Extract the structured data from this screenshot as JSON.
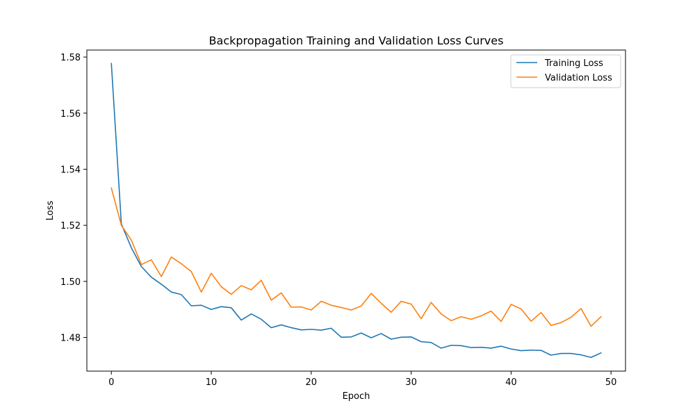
{
  "chart_data": {
    "type": "line",
    "title": "Backpropagation Training and Validation Loss Curves",
    "xlabel": "Epoch",
    "ylabel": "Loss",
    "xlim": [
      -2.45,
      51.45
    ],
    "ylim": [
      1.468,
      1.5825
    ],
    "xticks": [
      0,
      10,
      20,
      30,
      40,
      50
    ],
    "yticks": [
      1.48,
      1.5,
      1.52,
      1.54,
      1.56,
      1.58
    ],
    "ytick_labels": [
      "1.48",
      "1.50",
      "1.52",
      "1.54",
      "1.56",
      "1.58"
    ],
    "grid": false,
    "legend_position": "top-right",
    "x": [
      0,
      1,
      2,
      3,
      4,
      5,
      6,
      7,
      8,
      9,
      10,
      11,
      12,
      13,
      14,
      15,
      16,
      17,
      18,
      19,
      20,
      21,
      22,
      23,
      24,
      25,
      26,
      27,
      28,
      29,
      30,
      31,
      32,
      33,
      34,
      35,
      36,
      37,
      38,
      39,
      40,
      41,
      42,
      43,
      44,
      45,
      46,
      47,
      48,
      49
    ],
    "series": [
      {
        "name": "Training Loss",
        "color": "#1f77b4",
        "values": [
          1.5777,
          1.5205,
          1.512,
          1.5053,
          1.5015,
          1.499,
          1.4962,
          1.4953,
          1.4913,
          1.4915,
          1.49,
          1.491,
          1.4906,
          1.4862,
          1.4884,
          1.4865,
          1.4835,
          1.4845,
          1.4835,
          1.4827,
          1.4829,
          1.4826,
          1.4833,
          1.4801,
          1.4802,
          1.4816,
          1.4799,
          1.4814,
          1.4794,
          1.4801,
          1.4802,
          1.4785,
          1.4782,
          1.4762,
          1.4772,
          1.4771,
          1.4764,
          1.4765,
          1.4762,
          1.4769,
          1.4759,
          1.4753,
          1.4755,
          1.4754,
          1.4737,
          1.4743,
          1.4743,
          1.4738,
          1.4729,
          1.4745
        ]
      },
      {
        "name": "Validation Loss",
        "color": "#ff7f0e",
        "values": [
          1.5333,
          1.52,
          1.5147,
          1.506,
          1.5077,
          1.5017,
          1.5087,
          1.5063,
          1.5035,
          1.4962,
          1.5029,
          1.4981,
          1.4954,
          1.4985,
          1.497,
          1.5004,
          1.4933,
          1.4959,
          1.4908,
          1.4909,
          1.4898,
          1.4929,
          1.4915,
          1.4907,
          1.4898,
          1.4912,
          1.4957,
          1.4922,
          1.489,
          1.4929,
          1.4919,
          1.4867,
          1.4925,
          1.4884,
          1.486,
          1.4874,
          1.4865,
          1.4877,
          1.4894,
          1.4857,
          1.4918,
          1.4902,
          1.4858,
          1.4889,
          1.4843,
          1.4853,
          1.4872,
          1.4903,
          1.484,
          1.4874
        ]
      }
    ]
  }
}
